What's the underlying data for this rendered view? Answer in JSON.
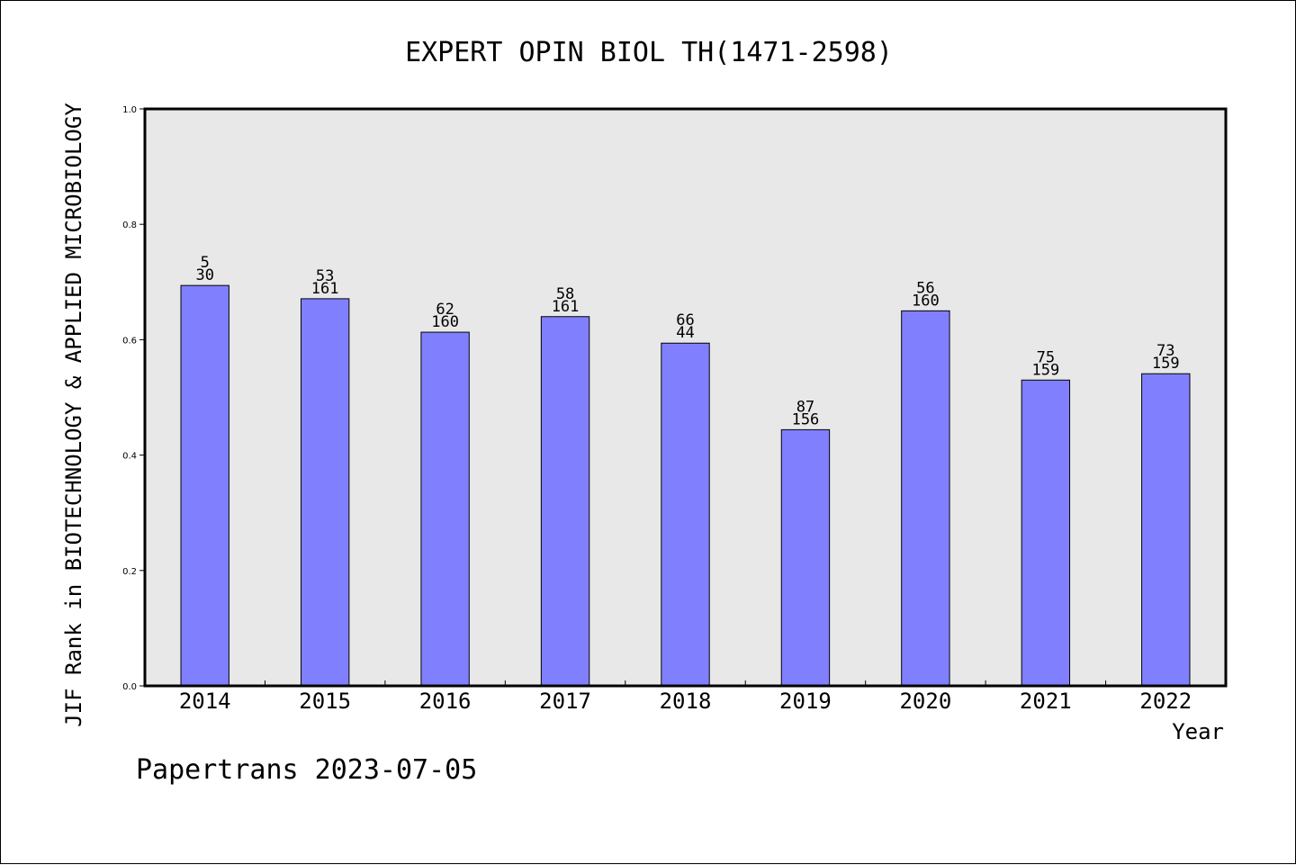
{
  "chart_data": {
    "type": "bar",
    "title": "EXPERT OPIN BIOL TH(1471-2598)",
    "xlabel": "Year",
    "ylabel": "JIF Rank in BIOTECHNOLOGY & APPLIED MICROBIOLOGY",
    "ylim": [
      0,
      1.0
    ],
    "yticks": [
      "0.0",
      "0.2",
      "0.4",
      "0.6",
      "0.8",
      "1.0"
    ],
    "grid": false,
    "categories": [
      "2014",
      "2015",
      "2016",
      "2017",
      "2018",
      "2019",
      "2020",
      "2021",
      "2022"
    ],
    "values": [
      0.694,
      0.671,
      0.613,
      0.64,
      0.594,
      0.444,
      0.65,
      0.53,
      0.541
    ],
    "rank": [
      "5",
      "53",
      "62",
      "58",
      "66",
      "87",
      "56",
      "75",
      "73"
    ],
    "total": [
      "30",
      "161",
      "160",
      "161",
      "44",
      "156",
      "160",
      "159",
      "159"
    ],
    "colors": {
      "bar": "#8080ff",
      "plot_bg": "#e8e8e8",
      "axis": "#000000"
    }
  },
  "footer": {
    "text": "Papertrans 2023-07-05"
  }
}
